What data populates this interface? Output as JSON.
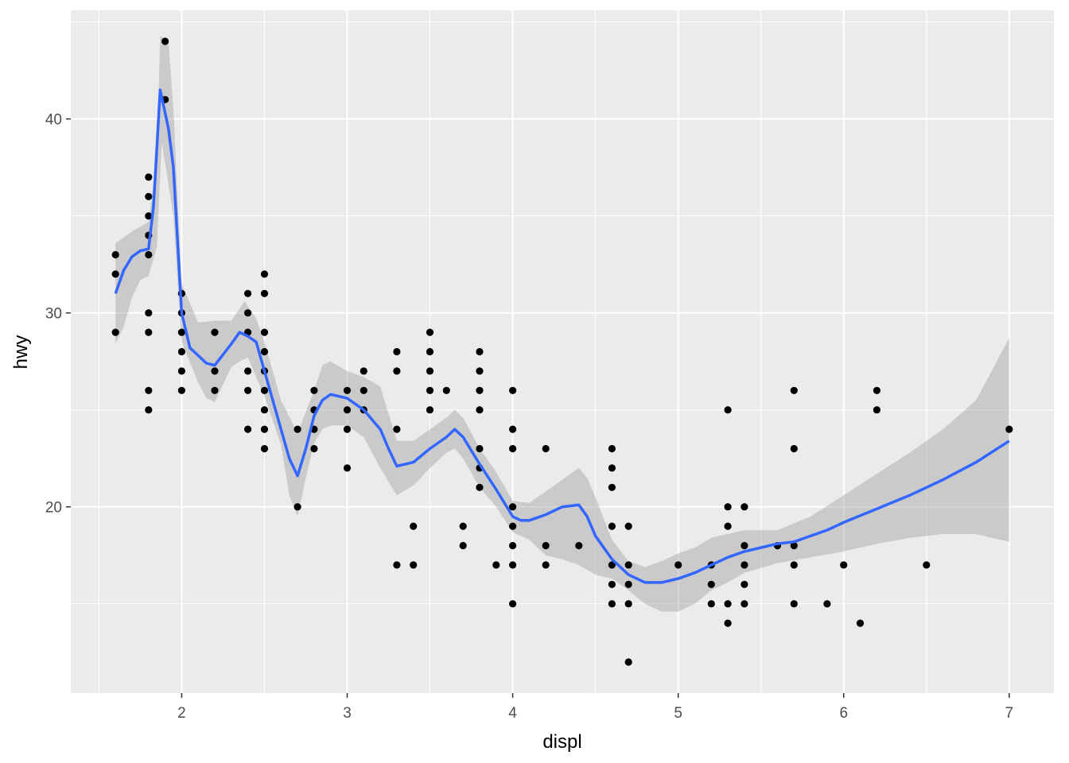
{
  "chart_data": {
    "type": "scatter",
    "title": "",
    "xlabel": "displ",
    "ylabel": "hwy",
    "xlim": [
      1.33,
      7.27
    ],
    "ylim": [
      10.4,
      45.6
    ],
    "x_ticks": [
      2,
      3,
      4,
      5,
      6,
      7
    ],
    "y_ticks": [
      20,
      30,
      40
    ],
    "grid": true,
    "legend": "none",
    "colors": {
      "panel": "#ebebeb",
      "grid": "#ffffff",
      "point": "#000000",
      "smooth_line": "#3366ff",
      "ribbon": "#b3b3b3",
      "tick_label": "#4d4d4d"
    },
    "points": [
      [
        1.6,
        33
      ],
      [
        1.6,
        32
      ],
      [
        1.6,
        29
      ],
      [
        1.8,
        37
      ],
      [
        1.8,
        36
      ],
      [
        1.8,
        35
      ],
      [
        1.8,
        34
      ],
      [
        1.8,
        33
      ],
      [
        1.8,
        30
      ],
      [
        1.8,
        29
      ],
      [
        1.8,
        26
      ],
      [
        1.8,
        25
      ],
      [
        1.9,
        44
      ],
      [
        1.9,
        41
      ],
      [
        2.0,
        31
      ],
      [
        2.0,
        30
      ],
      [
        2.0,
        29
      ],
      [
        2.0,
        28
      ],
      [
        2.0,
        27
      ],
      [
        2.0,
        26
      ],
      [
        2.2,
        29
      ],
      [
        2.2,
        27
      ],
      [
        2.2,
        26
      ],
      [
        2.4,
        31
      ],
      [
        2.4,
        30
      ],
      [
        2.4,
        29
      ],
      [
        2.4,
        27
      ],
      [
        2.4,
        26
      ],
      [
        2.4,
        24
      ],
      [
        2.5,
        32
      ],
      [
        2.5,
        31
      ],
      [
        2.5,
        29
      ],
      [
        2.5,
        28
      ],
      [
        2.5,
        27
      ],
      [
        2.5,
        26
      ],
      [
        2.5,
        25
      ],
      [
        2.5,
        24
      ],
      [
        2.5,
        23
      ],
      [
        2.7,
        24
      ],
      [
        2.7,
        20
      ],
      [
        2.8,
        26
      ],
      [
        2.8,
        25
      ],
      [
        2.8,
        24
      ],
      [
        2.8,
        23
      ],
      [
        3.0,
        26
      ],
      [
        3.0,
        25
      ],
      [
        3.0,
        24
      ],
      [
        3.0,
        22
      ],
      [
        3.1,
        27
      ],
      [
        3.1,
        26
      ],
      [
        3.1,
        25
      ],
      [
        3.3,
        28
      ],
      [
        3.3,
        27
      ],
      [
        3.3,
        24
      ],
      [
        3.3,
        17
      ],
      [
        3.4,
        19
      ],
      [
        3.4,
        17
      ],
      [
        3.5,
        29
      ],
      [
        3.5,
        28
      ],
      [
        3.5,
        27
      ],
      [
        3.5,
        26
      ],
      [
        3.5,
        25
      ],
      [
        3.6,
        26
      ],
      [
        3.7,
        19
      ],
      [
        3.7,
        18
      ],
      [
        3.8,
        28
      ],
      [
        3.8,
        27
      ],
      [
        3.8,
        26
      ],
      [
        3.8,
        25
      ],
      [
        3.8,
        23
      ],
      [
        3.8,
        22
      ],
      [
        3.8,
        21
      ],
      [
        3.9,
        17
      ],
      [
        4.0,
        26
      ],
      [
        4.0,
        24
      ],
      [
        4.0,
        23
      ],
      [
        4.0,
        20
      ],
      [
        4.0,
        19
      ],
      [
        4.0,
        18
      ],
      [
        4.0,
        17
      ],
      [
        4.0,
        15
      ],
      [
        4.2,
        23
      ],
      [
        4.2,
        18
      ],
      [
        4.2,
        17
      ],
      [
        4.4,
        18
      ],
      [
        4.6,
        23
      ],
      [
        4.6,
        22
      ],
      [
        4.6,
        21
      ],
      [
        4.6,
        19
      ],
      [
        4.6,
        17
      ],
      [
        4.6,
        16
      ],
      [
        4.6,
        15
      ],
      [
        4.7,
        19
      ],
      [
        4.7,
        17
      ],
      [
        4.7,
        16
      ],
      [
        4.7,
        15
      ],
      [
        4.7,
        12
      ],
      [
        5.0,
        17
      ],
      [
        5.2,
        17
      ],
      [
        5.2,
        16
      ],
      [
        5.2,
        15
      ],
      [
        5.3,
        25
      ],
      [
        5.3,
        20
      ],
      [
        5.3,
        19
      ],
      [
        5.3,
        15
      ],
      [
        5.3,
        14
      ],
      [
        5.4,
        20
      ],
      [
        5.4,
        18
      ],
      [
        5.4,
        17
      ],
      [
        5.4,
        16
      ],
      [
        5.4,
        15
      ],
      [
        5.6,
        18
      ],
      [
        5.7,
        26
      ],
      [
        5.7,
        23
      ],
      [
        5.7,
        18
      ],
      [
        5.7,
        17
      ],
      [
        5.7,
        15
      ],
      [
        5.9,
        15
      ],
      [
        6.0,
        17
      ],
      [
        6.1,
        14
      ],
      [
        6.2,
        26
      ],
      [
        6.2,
        25
      ],
      [
        6.5,
        17
      ],
      [
        7.0,
        24
      ]
    ],
    "smooth": [
      [
        1.6,
        31.0
      ],
      [
        1.65,
        32.2
      ],
      [
        1.7,
        32.9
      ],
      [
        1.75,
        33.2
      ],
      [
        1.8,
        33.3
      ],
      [
        1.83,
        35.5
      ],
      [
        1.87,
        41.5
      ],
      [
        1.92,
        39.5
      ],
      [
        1.95,
        37.5
      ],
      [
        2.0,
        30.0
      ],
      [
        2.05,
        28.2
      ],
      [
        2.1,
        27.8
      ],
      [
        2.15,
        27.4
      ],
      [
        2.2,
        27.3
      ],
      [
        2.3,
        28.4
      ],
      [
        2.35,
        29.0
      ],
      [
        2.4,
        28.8
      ],
      [
        2.45,
        28.5
      ],
      [
        2.5,
        27.0
      ],
      [
        2.55,
        25.5
      ],
      [
        2.6,
        24.0
      ],
      [
        2.65,
        22.5
      ],
      [
        2.7,
        21.6
      ],
      [
        2.75,
        23.0
      ],
      [
        2.8,
        24.7
      ],
      [
        2.85,
        25.5
      ],
      [
        2.9,
        25.8
      ],
      [
        3.0,
        25.6
      ],
      [
        3.1,
        25.0
      ],
      [
        3.2,
        24.0
      ],
      [
        3.25,
        23.0
      ],
      [
        3.3,
        22.1
      ],
      [
        3.4,
        22.3
      ],
      [
        3.5,
        23.0
      ],
      [
        3.6,
        23.6
      ],
      [
        3.65,
        24.0
      ],
      [
        3.7,
        23.6
      ],
      [
        3.8,
        22.2
      ],
      [
        3.9,
        20.9
      ],
      [
        4.0,
        19.5
      ],
      [
        4.05,
        19.3
      ],
      [
        4.1,
        19.3
      ],
      [
        4.2,
        19.6
      ],
      [
        4.3,
        20.0
      ],
      [
        4.4,
        20.1
      ],
      [
        4.45,
        19.5
      ],
      [
        4.5,
        18.5
      ],
      [
        4.6,
        17.3
      ],
      [
        4.7,
        16.5
      ],
      [
        4.8,
        16.1
      ],
      [
        4.9,
        16.1
      ],
      [
        5.0,
        16.3
      ],
      [
        5.1,
        16.6
      ],
      [
        5.2,
        17.0
      ],
      [
        5.3,
        17.4
      ],
      [
        5.4,
        17.7
      ],
      [
        5.5,
        17.9
      ],
      [
        5.6,
        18.1
      ],
      [
        5.7,
        18.2
      ],
      [
        5.8,
        18.5
      ],
      [
        5.9,
        18.8
      ],
      [
        6.0,
        19.2
      ],
      [
        6.2,
        19.9
      ],
      [
        6.4,
        20.6
      ],
      [
        6.6,
        21.4
      ],
      [
        6.8,
        22.3
      ],
      [
        7.0,
        23.4
      ]
    ],
    "ribbon_upper": [
      [
        1.6,
        33.6
      ],
      [
        1.7,
        34.2
      ],
      [
        1.8,
        34.7
      ],
      [
        1.85,
        38.0
      ],
      [
        1.87,
        44.3
      ],
      [
        1.92,
        44.0
      ],
      [
        1.95,
        40.5
      ],
      [
        2.0,
        31.5
      ],
      [
        2.1,
        29.5
      ],
      [
        2.2,
        29.6
      ],
      [
        2.3,
        29.6
      ],
      [
        2.38,
        30.6
      ],
      [
        2.45,
        29.7
      ],
      [
        2.5,
        28.5
      ],
      [
        2.6,
        25.5
      ],
      [
        2.7,
        23.8
      ],
      [
        2.8,
        26.0
      ],
      [
        2.85,
        27.3
      ],
      [
        2.9,
        27.5
      ],
      [
        3.0,
        27.0
      ],
      [
        3.1,
        26.7
      ],
      [
        3.2,
        26.2
      ],
      [
        3.3,
        23.4
      ],
      [
        3.4,
        23.4
      ],
      [
        3.5,
        24.0
      ],
      [
        3.6,
        24.6
      ],
      [
        3.65,
        25.0
      ],
      [
        3.7,
        24.6
      ],
      [
        3.8,
        23.0
      ],
      [
        3.9,
        21.8
      ],
      [
        4.0,
        20.3
      ],
      [
        4.1,
        20.2
      ],
      [
        4.2,
        20.8
      ],
      [
        4.3,
        21.4
      ],
      [
        4.4,
        22.0
      ],
      [
        4.45,
        21.5
      ],
      [
        4.5,
        20.5
      ],
      [
        4.6,
        18.3
      ],
      [
        4.7,
        17.2
      ],
      [
        4.8,
        16.9
      ],
      [
        4.9,
        17.2
      ],
      [
        5.0,
        17.6
      ],
      [
        5.1,
        17.9
      ],
      [
        5.2,
        18.4
      ],
      [
        5.4,
        18.8
      ],
      [
        5.6,
        18.8
      ],
      [
        5.8,
        19.5
      ],
      [
        6.0,
        20.6
      ],
      [
        6.2,
        21.7
      ],
      [
        6.4,
        22.8
      ],
      [
        6.6,
        24.0
      ],
      [
        6.8,
        25.5
      ],
      [
        7.0,
        28.7
      ]
    ],
    "ribbon_lower": [
      [
        1.6,
        28.4
      ],
      [
        1.65,
        29.3
      ],
      [
        1.7,
        30.8
      ],
      [
        1.75,
        31.7
      ],
      [
        1.8,
        31.9
      ],
      [
        1.85,
        33.4
      ],
      [
        1.88,
        38.8
      ],
      [
        1.95,
        35.0
      ],
      [
        2.0,
        28.5
      ],
      [
        2.1,
        26.4
      ],
      [
        2.15,
        25.6
      ],
      [
        2.2,
        25.4
      ],
      [
        2.3,
        27.2
      ],
      [
        2.35,
        27.5
      ],
      [
        2.4,
        27.7
      ],
      [
        2.5,
        25.7
      ],
      [
        2.6,
        23.2
      ],
      [
        2.65,
        20.6
      ],
      [
        2.7,
        19.5
      ],
      [
        2.75,
        21.5
      ],
      [
        2.8,
        23.3
      ],
      [
        2.85,
        24.0
      ],
      [
        2.9,
        24.2
      ],
      [
        3.0,
        24.2
      ],
      [
        3.1,
        23.6
      ],
      [
        3.2,
        22.0
      ],
      [
        3.3,
        20.6
      ],
      [
        3.4,
        21.1
      ],
      [
        3.5,
        22.0
      ],
      [
        3.6,
        22.8
      ],
      [
        3.65,
        23.0
      ],
      [
        3.7,
        22.5
      ],
      [
        3.8,
        21.0
      ],
      [
        3.9,
        20.0
      ],
      [
        4.0,
        18.7
      ],
      [
        4.1,
        18.3
      ],
      [
        4.2,
        17.5
      ],
      [
        4.3,
        17.3
      ],
      [
        4.4,
        17.0
      ],
      [
        4.5,
        16.5
      ],
      [
        4.6,
        16.3
      ],
      [
        4.7,
        15.7
      ],
      [
        4.8,
        15.0
      ],
      [
        4.9,
        14.6
      ],
      [
        5.0,
        14.6
      ],
      [
        5.1,
        15.0
      ],
      [
        5.2,
        15.7
      ],
      [
        5.3,
        16.1
      ],
      [
        5.4,
        16.6
      ],
      [
        5.6,
        17.1
      ],
      [
        5.8,
        17.4
      ],
      [
        6.0,
        17.7
      ],
      [
        6.2,
        18.1
      ],
      [
        6.4,
        18.4
      ],
      [
        6.6,
        18.6
      ],
      [
        6.8,
        18.6
      ],
      [
        7.0,
        18.2
      ]
    ]
  }
}
